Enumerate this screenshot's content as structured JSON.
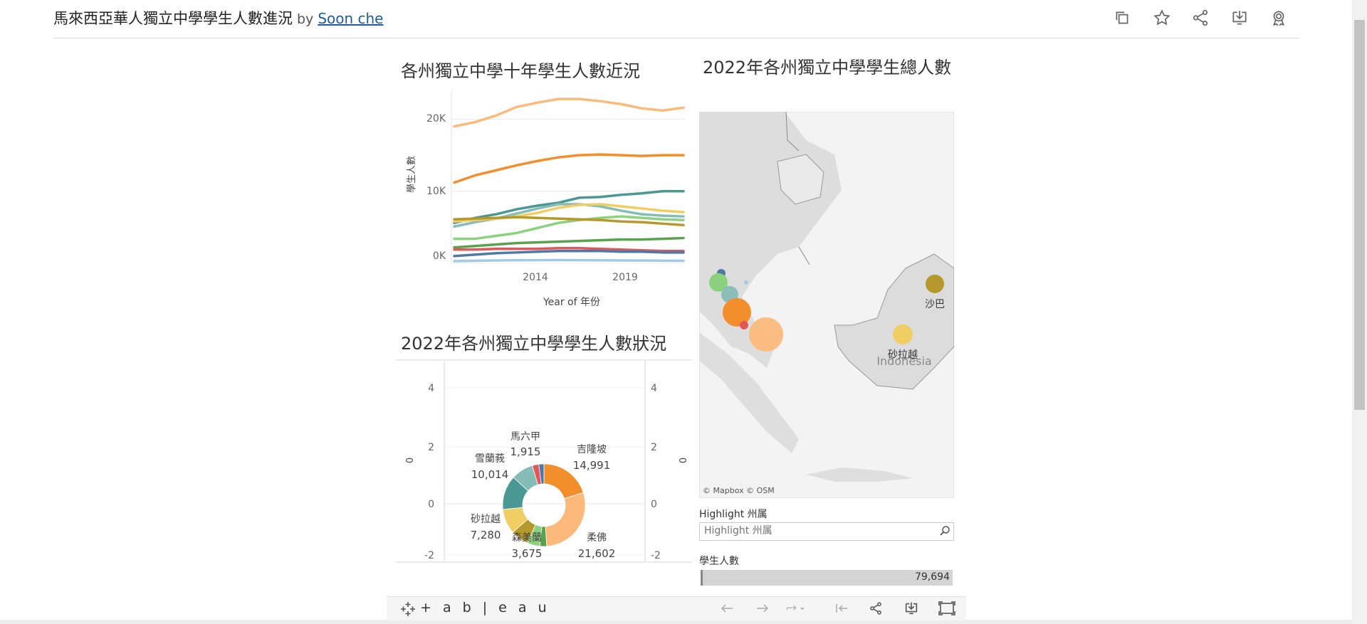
{
  "header": {
    "title": "馬來西亞華人獨立中學學生人數進況",
    "by": "by",
    "author": "Soon che",
    "toolbar_icons": [
      "copy-icon",
      "star-icon",
      "share-icon",
      "download-icon",
      "badge-icon"
    ]
  },
  "line_chart": {
    "title": "各州獨立中學十年學生人數近況",
    "ylabel": "學生人數",
    "xlabel": "Year of 年份",
    "y_ticks": [
      "20K",
      "10K",
      "0K"
    ],
    "x_ticks": [
      "2014",
      "2019"
    ]
  },
  "donut_chart": {
    "title": "2022年各州獨立中學學生人數狀況",
    "axis_ticks": [
      "4",
      "2",
      "0",
      "-2"
    ],
    "axis_title": "0",
    "labels": [
      {
        "name": "馬六甲",
        "value": "1,915"
      },
      {
        "name": "吉隆坡",
        "value": "14,991"
      },
      {
        "name": "雪蘭莪",
        "value": "10,014"
      },
      {
        "name": "砂拉越",
        "value": "7,280"
      },
      {
        "name": "森美蘭",
        "value": "3,675"
      },
      {
        "name": "柔佛",
        "value": "21,602"
      }
    ]
  },
  "map": {
    "title": "2022年各州獨立中學學生總人數",
    "attribution": "© Mapbox  © OSM",
    "labels": {
      "sabah": "沙巴",
      "sarawak": "砂拉越",
      "indonesia": "Indonesia"
    }
  },
  "filter": {
    "label": "Highlight 州属",
    "placeholder": "Highlight 州属"
  },
  "total": {
    "label": "學生人數",
    "value": "79,694"
  },
  "bottom_bar": {
    "logo": "+ a b | e a u",
    "icons": [
      "undo-icon",
      "redo-icon",
      "revert-icon",
      "reset-icon",
      "share-icon",
      "download-icon",
      "fullscreen-icon"
    ]
  },
  "chart_data": [
    {
      "type": "line",
      "title": "各州獨立中學十年學生人數近況",
      "xlabel": "Year of 年份",
      "ylabel": "學生人數",
      "x": [
        2011,
        2012,
        2013,
        2014,
        2015,
        2016,
        2017,
        2018,
        2019,
        2020,
        2021,
        2022
      ],
      "ylim": [
        0,
        24000
      ],
      "series": [
        {
          "color": "#fbb97b",
          "values": [
            19000,
            19600,
            20500,
            21700,
            22300,
            22800,
            22800,
            22500,
            22100,
            21500,
            21200,
            21600
          ]
        },
        {
          "color": "#f28e2b",
          "values": [
            11200,
            12200,
            12900,
            13600,
            14200,
            14700,
            15000,
            15100,
            15000,
            14900,
            15000,
            15000
          ]
        },
        {
          "color": "#499894",
          "values": [
            5600,
            6300,
            6800,
            7500,
            8000,
            8400,
            9100,
            9200,
            9500,
            9700,
            10000,
            10000
          ]
        },
        {
          "color": "#86bcb6",
          "values": [
            5100,
            5700,
            6200,
            6900,
            7600,
            8200,
            8200,
            7900,
            7300,
            6800,
            6600,
            6500
          ]
        },
        {
          "color": "#f1ce63",
          "values": [
            5800,
            6000,
            6200,
            6500,
            7000,
            7700,
            8100,
            8200,
            7900,
            7600,
            7300,
            7100
          ]
        },
        {
          "color": "#8cd17d",
          "values": [
            3400,
            3400,
            3800,
            4200,
            4900,
            5600,
            6000,
            6300,
            6500,
            6300,
            6100,
            6000
          ]
        },
        {
          "color": "#b6992d",
          "values": [
            6100,
            6200,
            6300,
            6400,
            6300,
            6200,
            6100,
            6000,
            5800,
            5700,
            5500,
            5300
          ]
        },
        {
          "color": "#59a14f",
          "values": [
            2200,
            2400,
            2600,
            2800,
            2900,
            3000,
            3100,
            3200,
            3300,
            3300,
            3400,
            3500
          ]
        },
        {
          "color": "#e15759",
          "values": [
            1900,
            1900,
            2000,
            2000,
            2000,
            2100,
            2100,
            2000,
            1900,
            1800,
            1700,
            1700
          ]
        },
        {
          "color": "#4e79a7",
          "values": [
            1000,
            1200,
            1400,
            1500,
            1600,
            1700,
            1700,
            1700,
            1600,
            1600,
            1500,
            1500
          ]
        },
        {
          "color": "#a0cbe8",
          "values": [
            300,
            350,
            400,
            420,
            430,
            440,
            430,
            410,
            400,
            380,
            360,
            350
          ]
        }
      ]
    },
    {
      "type": "pie",
      "title": "2022年各州獨立中學學生人數狀況",
      "slices": [
        {
          "label": "吉隆坡",
          "value": 14991,
          "color": "#f28e2b"
        },
        {
          "label": "柔佛",
          "value": 21602,
          "color": "#fbb97b"
        },
        {
          "label": "",
          "value": 2000,
          "color": "#59a14f"
        },
        {
          "label": "森美蘭",
          "value": 3675,
          "color": "#8cd17d"
        },
        {
          "label": "",
          "value": 5300,
          "color": "#b6992d"
        },
        {
          "label": "砂拉越",
          "value": 7280,
          "color": "#f1ce63"
        },
        {
          "label": "雪蘭莪",
          "value": 10014,
          "color": "#499894"
        },
        {
          "label": "",
          "value": 6500,
          "color": "#86bcb6"
        },
        {
          "label": "馬六甲",
          "value": 1915,
          "color": "#e15759"
        },
        {
          "label": "",
          "value": 1500,
          "color": "#4e79a7"
        }
      ]
    }
  ]
}
